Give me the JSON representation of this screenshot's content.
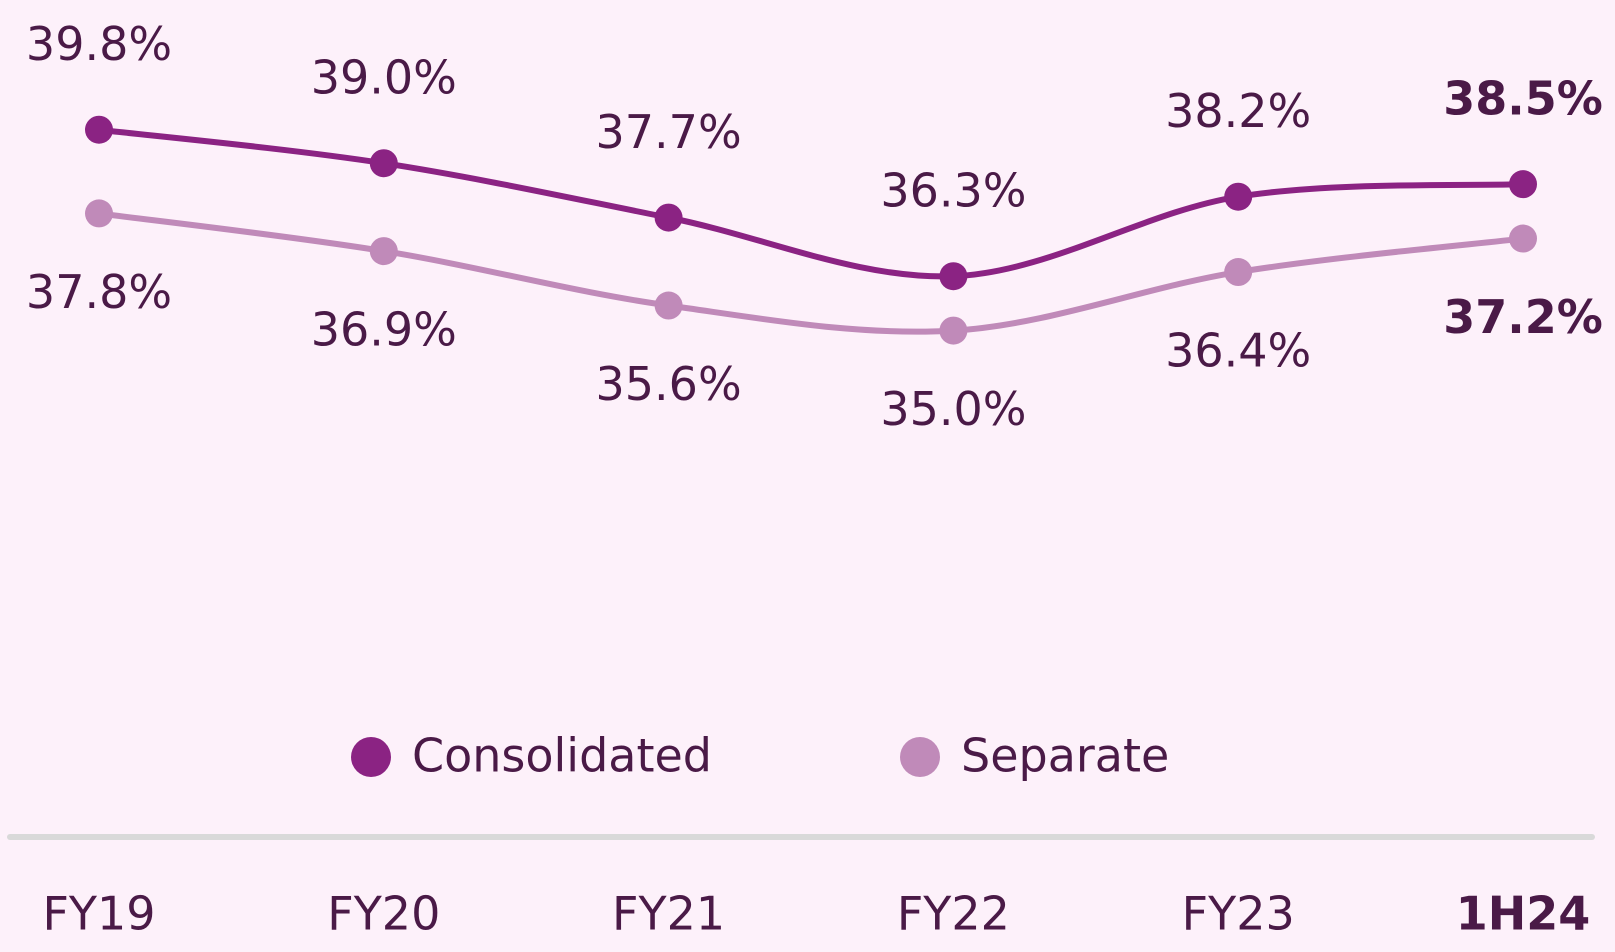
{
  "chart_data": {
    "type": "line",
    "categories": [
      "FY19",
      "FY20",
      "FY21",
      "FY22",
      "FY23",
      "1H24"
    ],
    "series": [
      {
        "name": "Consolidated",
        "color": "#8b2383",
        "values": [
          39.8,
          39.0,
          37.7,
          36.3,
          38.2,
          38.5
        ],
        "value_labels": [
          "39.8%",
          "39.0%",
          "37.7%",
          "36.3%",
          "38.2%",
          "38.5%"
        ]
      },
      {
        "name": "Separate",
        "color": "#c08ab9",
        "values": [
          37.8,
          36.9,
          35.6,
          35.0,
          36.4,
          37.2
        ],
        "value_labels": [
          "37.8%",
          "36.9%",
          "35.6%",
          "35.0%",
          "36.4%",
          "37.2%"
        ]
      }
    ],
    "ylim": [
      22.9,
      42.9
    ]
  }
}
